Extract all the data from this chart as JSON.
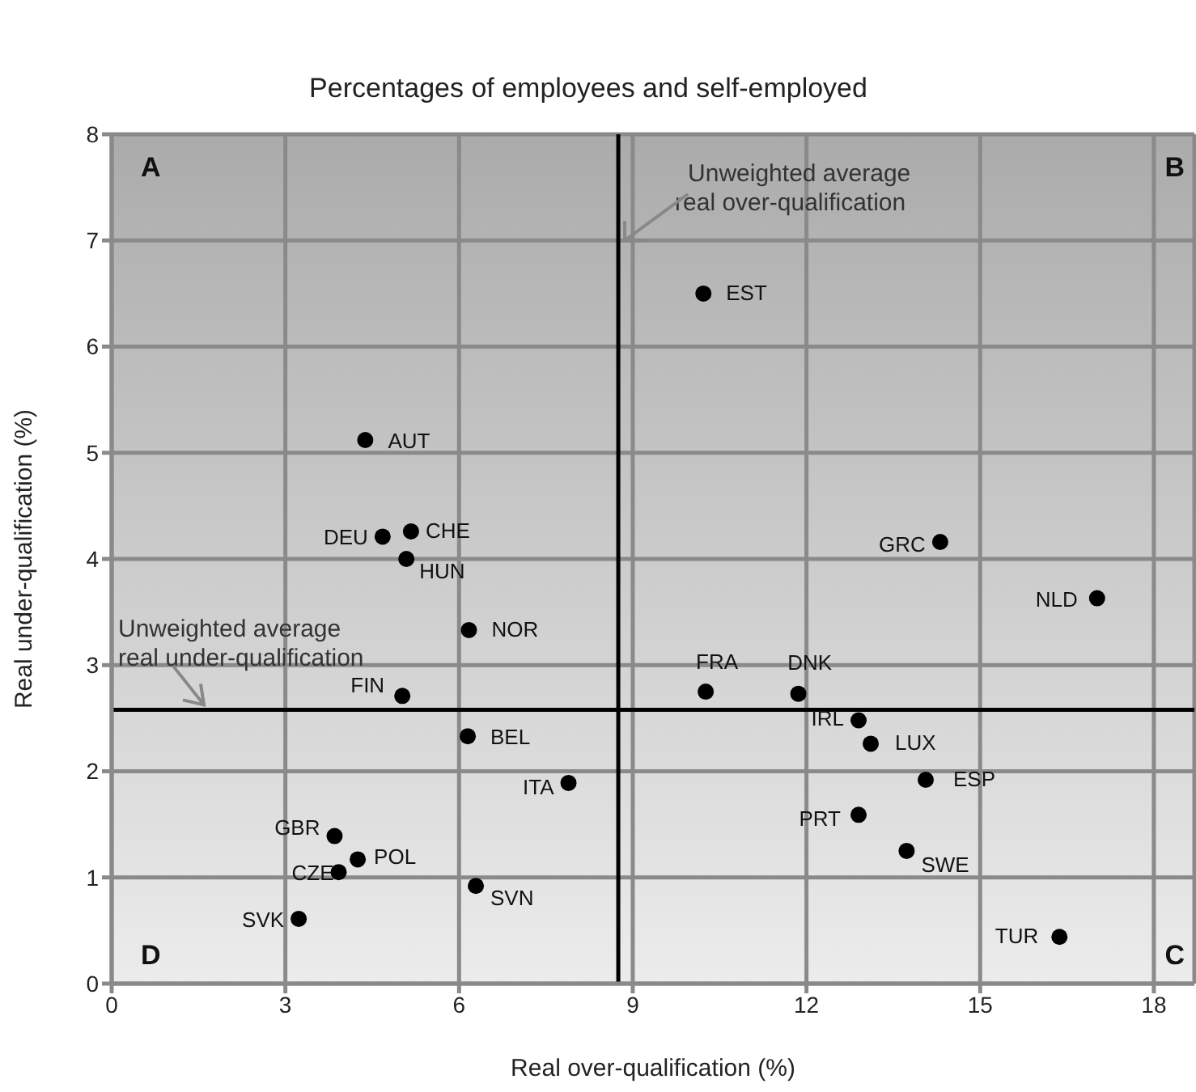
{
  "chart_data": {
    "type": "scatter",
    "title": "Percentages of employees and self-employed",
    "xlabel": "Real over-qualification (%)",
    "ylabel": "Real under-qualification (%)",
    "series": [
      {
        "color": "#000000",
        "x": [
          4.38,
          4.68,
          5.17,
          5.09,
          10.22,
          14.31,
          17.02,
          6.17,
          5.02,
          6.15,
          7.89,
          3.85,
          4.25,
          3.92,
          6.29,
          3.23,
          10.26,
          11.86,
          12.9,
          13.11,
          14.06,
          12.9,
          13.73,
          16.37
        ],
        "values": [
          5.12,
          4.21,
          4.26,
          4.0,
          6.5,
          4.16,
          3.63,
          3.33,
          2.71,
          2.33,
          1.89,
          1.39,
          1.17,
          1.05,
          0.92,
          0.61,
          2.75,
          2.73,
          2.48,
          2.26,
          1.92,
          1.59,
          1.25,
          0.44
        ]
      }
    ],
    "xlim": [
      0,
      18.7
    ],
    "xticks": [
      0,
      3,
      6,
      9,
      12,
      15,
      18
    ],
    "ylim": [
      0,
      8
    ],
    "yticks": [
      0,
      1,
      2,
      3,
      4,
      5,
      6,
      7,
      8
    ],
    "grid": true,
    "marker": "circle",
    "legend": false,
    "ref_lines": [
      {
        "axis": "x",
        "value": 8.75,
        "label": "Unweighted average real over-qualification",
        "color": "#000000"
      },
      {
        "axis": "y",
        "value": 2.58,
        "label": "Unweighted average real under-qualification",
        "color": "#000000"
      }
    ],
    "annotations": [
      "A",
      "B",
      "C",
      "D",
      {
        "text": "AUT",
        "x": 4.38,
        "y": 5.12
      },
      {
        "text": "DEU",
        "x": 4.68,
        "y": 4.21
      },
      {
        "text": "CHE",
        "x": 5.17,
        "y": 4.26
      },
      {
        "text": "HUN",
        "x": 5.09,
        "y": 4.0
      },
      {
        "text": "EST",
        "x": 10.22,
        "y": 6.5
      },
      {
        "text": "GRC",
        "x": 14.31,
        "y": 4.16
      },
      {
        "text": "NLD",
        "x": 17.02,
        "y": 3.63
      },
      {
        "text": "NOR",
        "x": 6.17,
        "y": 3.33
      },
      {
        "text": "FIN",
        "x": 5.02,
        "y": 2.71
      },
      {
        "text": "BEL",
        "x": 6.15,
        "y": 2.33
      },
      {
        "text": "ITA",
        "x": 7.89,
        "y": 1.89
      },
      {
        "text": "GBR",
        "x": 3.85,
        "y": 1.39
      },
      {
        "text": "POL",
        "x": 4.25,
        "y": 1.17
      },
      {
        "text": "CZE",
        "x": 3.92,
        "y": 1.05
      },
      {
        "text": "SVN",
        "x": 6.29,
        "y": 0.92
      },
      {
        "text": "SVK",
        "x": 3.23,
        "y": 0.61
      },
      {
        "text": "FRA",
        "x": 10.26,
        "y": 2.75
      },
      {
        "text": "DNK",
        "x": 11.86,
        "y": 2.73
      },
      {
        "text": "IRL",
        "x": 12.9,
        "y": 2.48
      },
      {
        "text": "LUX",
        "x": 13.11,
        "y": 2.26
      },
      {
        "text": "ESP",
        "x": 14.06,
        "y": 1.92
      },
      {
        "text": "PRT",
        "x": 12.9,
        "y": 1.59
      },
      {
        "text": "SWE",
        "x": 13.73,
        "y": 1.25
      },
      {
        "text": "TUR",
        "x": 16.37,
        "y": 0.44
      }
    ]
  }
}
